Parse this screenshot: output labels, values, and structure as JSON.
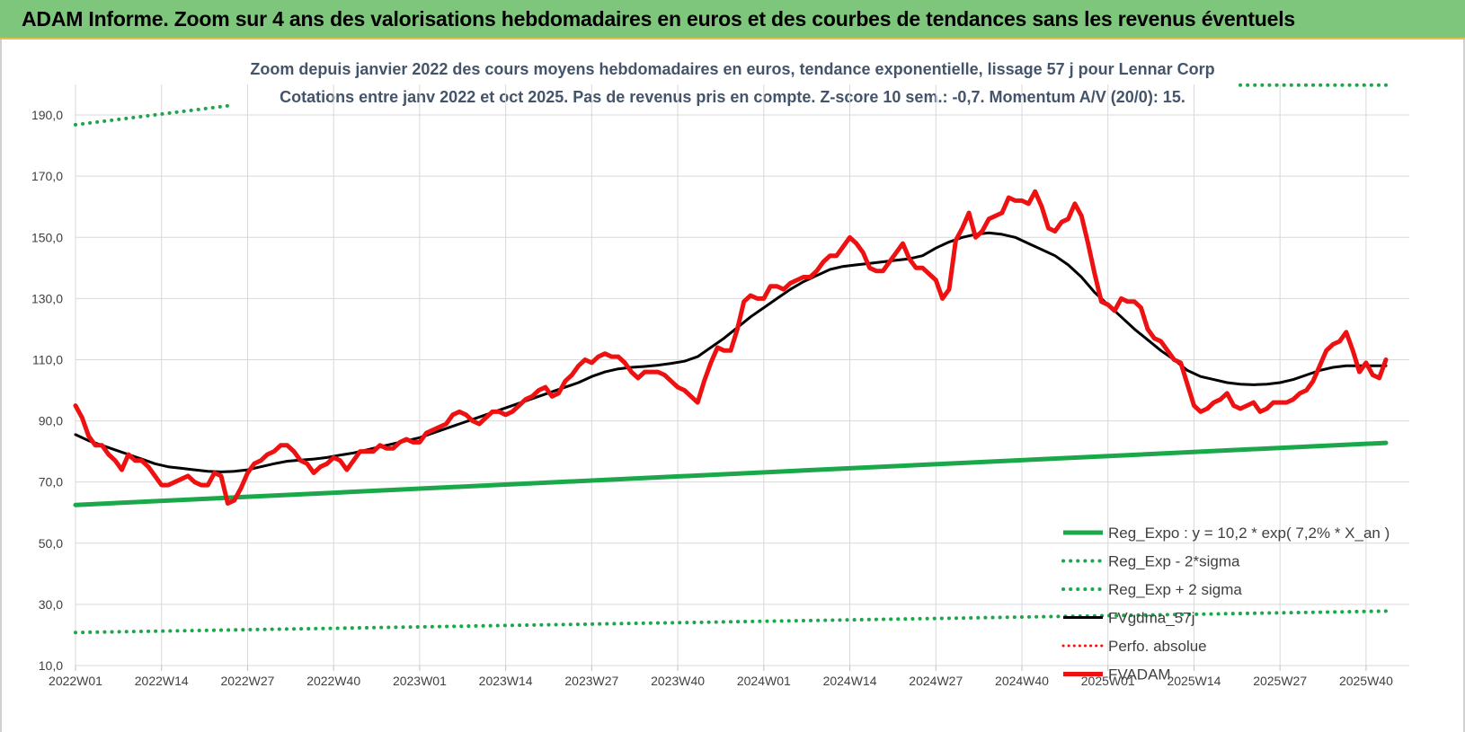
{
  "banner": {
    "title": "ADAM Informe. Zoom sur 4 ans des valorisations hebdomadaires en euros et des courbes de tendances sans les revenus éventuels"
  },
  "colors": {
    "banner_bg": "#7dc67b",
    "grid": "#d9d9d9",
    "reg_expo": "#1aa84a",
    "fvgdma": "#000000",
    "fvadam": "#ee1111",
    "perfo": "#ee1111"
  },
  "chart_data": {
    "type": "line",
    "title": "Zoom depuis janvier 2022 des cours moyens hebdomadaires en euros, tendance exponentielle, lissage 57 j pour Lennar Corp",
    "subtitle": "Cotations entre janv 2022 et oct 2025. Pas de revenus pris en compte. Z-score 10 sem.: -0,7. Momentum A/V (20/0): 15.",
    "xlabel": "",
    "ylabel": "",
    "ylim": [
      10,
      200
    ],
    "y_ticks": [
      10,
      30,
      50,
      70,
      90,
      110,
      130,
      150,
      170,
      190
    ],
    "y_tick_labels": [
      "10,0",
      "30,0",
      "50,0",
      "70,0",
      "90,0",
      "110,0",
      "130,0",
      "150,0",
      "170,0",
      "190,0"
    ],
    "x_ticks": [
      0,
      13,
      26,
      39,
      52,
      65,
      78,
      91,
      104,
      117,
      130,
      143,
      156,
      169,
      182,
      195
    ],
    "x_tick_labels": [
      "2022W01",
      "2022W14",
      "2022W27",
      "2022W40",
      "2023W01",
      "2023W14",
      "2023W27",
      "2023W40",
      "2024W01",
      "2024W14",
      "2024W27",
      "2024W40",
      "2025W01",
      "2025W14",
      "2025W27",
      "2025W40"
    ],
    "x_max": 198,
    "grid": true,
    "legend_position": "bottom-right",
    "series": [
      {
        "name": "Reg_Expo : y = 10,2 * exp( 7,2% * X_an )",
        "style": "solid-thick",
        "points": [
          [
            0,
            62.5
          ],
          [
            198,
            82.8
          ]
        ]
      },
      {
        "name": "Reg_Exp - 2*sigma",
        "style": "dotted",
        "points": [
          [
            0,
            20.8
          ],
          [
            198,
            27.8
          ]
        ]
      },
      {
        "name": "Reg_Exp + 2 sigma",
        "style": "dotted",
        "segments": [
          [
            [
              0,
              186.8
            ],
            [
              23,
              193.0
            ]
          ],
          [
            [
              176,
              199.8
            ],
            [
              198,
              199.8
            ]
          ]
        ]
      },
      {
        "name": "FVgdma_57j",
        "style": "solid",
        "points": [
          [
            0,
            85.5
          ],
          [
            2,
            83.5
          ],
          [
            4,
            82
          ],
          [
            6,
            80.5
          ],
          [
            8,
            79
          ],
          [
            10,
            77.5
          ],
          [
            12,
            76
          ],
          [
            14,
            75
          ],
          [
            16,
            74.5
          ],
          [
            18,
            74
          ],
          [
            20,
            73.5
          ],
          [
            22,
            73.3
          ],
          [
            24,
            73.5
          ],
          [
            26,
            74
          ],
          [
            28,
            75
          ],
          [
            30,
            76
          ],
          [
            32,
            76.8
          ],
          [
            34,
            77.2
          ],
          [
            36,
            77.5
          ],
          [
            38,
            78
          ],
          [
            40,
            78.8
          ],
          [
            42,
            79.5
          ],
          [
            44,
            80.5
          ],
          [
            46,
            81.5
          ],
          [
            48,
            82.5
          ],
          [
            50,
            83.5
          ],
          [
            52,
            84.5
          ],
          [
            54,
            86
          ],
          [
            56,
            87.5
          ],
          [
            58,
            89
          ],
          [
            60,
            90.5
          ],
          [
            62,
            92
          ],
          [
            64,
            93.5
          ],
          [
            66,
            95
          ],
          [
            68,
            96.5
          ],
          [
            70,
            98
          ],
          [
            72,
            99.5
          ],
          [
            74,
            101
          ],
          [
            76,
            102.5
          ],
          [
            78,
            104.5
          ],
          [
            80,
            106
          ],
          [
            82,
            107
          ],
          [
            84,
            107.5
          ],
          [
            86,
            107.8
          ],
          [
            88,
            108.2
          ],
          [
            90,
            108.8
          ],
          [
            92,
            109.5
          ],
          [
            94,
            111
          ],
          [
            96,
            114
          ],
          [
            98,
            117
          ],
          [
            100,
            120.5
          ],
          [
            102,
            124
          ],
          [
            104,
            127
          ],
          [
            106,
            130
          ],
          [
            108,
            133
          ],
          [
            110,
            135.5
          ],
          [
            112,
            137.5
          ],
          [
            114,
            139.5
          ],
          [
            116,
            140.5
          ],
          [
            118,
            141
          ],
          [
            120,
            141.5
          ],
          [
            122,
            142
          ],
          [
            124,
            142.5
          ],
          [
            126,
            143
          ],
          [
            128,
            144
          ],
          [
            130,
            146.5
          ],
          [
            132,
            148.5
          ],
          [
            134,
            150
          ],
          [
            136,
            151
          ],
          [
            138,
            151.5
          ],
          [
            140,
            151
          ],
          [
            142,
            150
          ],
          [
            144,
            148
          ],
          [
            146,
            146
          ],
          [
            148,
            144
          ],
          [
            150,
            141
          ],
          [
            152,
            137
          ],
          [
            154,
            132
          ],
          [
            156,
            128
          ],
          [
            158,
            124
          ],
          [
            160,
            120
          ],
          [
            162,
            116.5
          ],
          [
            164,
            113
          ],
          [
            166,
            110
          ],
          [
            168,
            106.5
          ],
          [
            170,
            104.5
          ],
          [
            172,
            103.5
          ],
          [
            174,
            102.5
          ],
          [
            176,
            102
          ],
          [
            178,
            101.8
          ],
          [
            180,
            102
          ],
          [
            182,
            102.5
          ],
          [
            184,
            103.5
          ],
          [
            186,
            105
          ],
          [
            188,
            106.5
          ],
          [
            190,
            107.5
          ],
          [
            192,
            108
          ],
          [
            194,
            108
          ],
          [
            196,
            108
          ],
          [
            198,
            108
          ]
        ]
      },
      {
        "name": "Perfo. absolue",
        "style": "dotted",
        "points": []
      },
      {
        "name": "FVADAM",
        "style": "solid-thick",
        "points": [
          [
            0,
            95
          ],
          [
            1,
            91
          ],
          [
            2,
            85
          ],
          [
            3,
            82
          ],
          [
            4,
            82
          ],
          [
            5,
            79
          ],
          [
            6,
            77
          ],
          [
            7,
            74
          ],
          [
            8,
            79
          ],
          [
            9,
            77
          ],
          [
            10,
            77
          ],
          [
            11,
            75
          ],
          [
            12,
            72
          ],
          [
            13,
            69
          ],
          [
            14,
            69
          ],
          [
            15,
            70
          ],
          [
            16,
            71
          ],
          [
            17,
            72
          ],
          [
            18,
            70
          ],
          [
            19,
            69
          ],
          [
            20,
            69
          ],
          [
            21,
            73
          ],
          [
            22,
            72
          ],
          [
            23,
            63
          ],
          [
            24,
            64
          ],
          [
            25,
            68
          ],
          [
            26,
            73
          ],
          [
            27,
            76
          ],
          [
            28,
            77
          ],
          [
            29,
            79
          ],
          [
            30,
            80
          ],
          [
            31,
            82
          ],
          [
            32,
            82
          ],
          [
            33,
            80
          ],
          [
            34,
            77
          ],
          [
            35,
            76
          ],
          [
            36,
            73
          ],
          [
            37,
            75
          ],
          [
            38,
            76
          ],
          [
            39,
            78
          ],
          [
            40,
            77
          ],
          [
            41,
            74
          ],
          [
            42,
            77
          ],
          [
            43,
            80
          ],
          [
            44,
            80
          ],
          [
            45,
            80
          ],
          [
            46,
            82
          ],
          [
            47,
            81
          ],
          [
            48,
            81
          ],
          [
            49,
            83
          ],
          [
            50,
            84
          ],
          [
            51,
            83
          ],
          [
            52,
            83
          ],
          [
            53,
            86
          ],
          [
            54,
            87
          ],
          [
            55,
            88
          ],
          [
            56,
            89
          ],
          [
            57,
            92
          ],
          [
            58,
            93
          ],
          [
            59,
            92
          ],
          [
            60,
            90
          ],
          [
            61,
            89
          ],
          [
            62,
            91
          ],
          [
            63,
            93
          ],
          [
            64,
            93
          ],
          [
            65,
            92
          ],
          [
            66,
            93
          ],
          [
            67,
            95
          ],
          [
            68,
            97
          ],
          [
            69,
            98
          ],
          [
            70,
            100
          ],
          [
            71,
            101
          ],
          [
            72,
            98
          ],
          [
            73,
            99
          ],
          [
            74,
            103
          ],
          [
            75,
            105
          ],
          [
            76,
            108
          ],
          [
            77,
            110
          ],
          [
            78,
            109
          ],
          [
            79,
            111
          ],
          [
            80,
            112
          ],
          [
            81,
            111
          ],
          [
            82,
            111
          ],
          [
            83,
            109
          ],
          [
            84,
            106
          ],
          [
            85,
            104
          ],
          [
            86,
            106
          ],
          [
            87,
            106
          ],
          [
            88,
            106
          ],
          [
            89,
            105
          ],
          [
            90,
            103
          ],
          [
            91,
            101
          ],
          [
            92,
            100
          ],
          [
            93,
            98
          ],
          [
            94,
            96
          ],
          [
            95,
            103
          ],
          [
            96,
            109
          ],
          [
            97,
            114
          ],
          [
            98,
            113
          ],
          [
            99,
            113
          ],
          [
            100,
            120
          ],
          [
            101,
            129
          ],
          [
            102,
            131
          ],
          [
            103,
            130
          ],
          [
            104,
            130
          ],
          [
            105,
            134
          ],
          [
            106,
            134
          ],
          [
            107,
            133
          ],
          [
            108,
            135
          ],
          [
            109,
            136
          ],
          [
            110,
            137
          ],
          [
            111,
            137
          ],
          [
            112,
            139
          ],
          [
            113,
            142
          ],
          [
            114,
            144
          ],
          [
            115,
            144
          ],
          [
            116,
            147
          ],
          [
            117,
            150
          ],
          [
            118,
            148
          ],
          [
            119,
            145
          ],
          [
            120,
            140
          ],
          [
            121,
            139
          ],
          [
            122,
            139
          ],
          [
            123,
            142
          ],
          [
            124,
            145
          ],
          [
            125,
            148
          ],
          [
            126,
            143
          ],
          [
            127,
            140
          ],
          [
            128,
            140
          ],
          [
            129,
            138
          ],
          [
            130,
            136
          ],
          [
            131,
            130
          ],
          [
            132,
            133
          ],
          [
            133,
            149
          ],
          [
            134,
            153
          ],
          [
            135,
            158
          ],
          [
            136,
            150
          ],
          [
            137,
            152
          ],
          [
            138,
            156
          ],
          [
            139,
            157
          ],
          [
            140,
            158
          ],
          [
            141,
            163
          ],
          [
            142,
            162
          ],
          [
            143,
            162
          ],
          [
            144,
            161
          ],
          [
            145,
            165
          ],
          [
            146,
            160
          ],
          [
            147,
            153
          ],
          [
            148,
            152
          ],
          [
            149,
            155
          ],
          [
            150,
            156
          ],
          [
            151,
            161
          ],
          [
            152,
            157
          ],
          [
            153,
            148
          ],
          [
            154,
            138
          ],
          [
            155,
            129
          ],
          [
            156,
            128
          ],
          [
            157,
            126
          ],
          [
            158,
            130
          ],
          [
            159,
            129
          ],
          [
            160,
            129
          ],
          [
            161,
            127
          ],
          [
            162,
            120
          ],
          [
            163,
            117
          ],
          [
            164,
            116
          ],
          [
            165,
            113
          ],
          [
            166,
            110
          ],
          [
            167,
            109
          ],
          [
            168,
            102
          ],
          [
            169,
            95
          ],
          [
            170,
            93
          ],
          [
            171,
            94
          ],
          [
            172,
            96
          ],
          [
            173,
            97
          ],
          [
            174,
            99
          ],
          [
            175,
            95
          ],
          [
            176,
            94
          ],
          [
            177,
            95
          ],
          [
            178,
            96
          ],
          [
            179,
            93
          ],
          [
            180,
            94
          ],
          [
            181,
            96
          ],
          [
            182,
            96
          ],
          [
            183,
            96
          ],
          [
            184,
            97
          ],
          [
            185,
            99
          ],
          [
            186,
            100
          ],
          [
            187,
            103
          ],
          [
            188,
            108
          ],
          [
            189,
            113
          ],
          [
            190,
            115
          ],
          [
            191,
            116
          ],
          [
            192,
            119
          ],
          [
            193,
            113
          ],
          [
            194,
            106
          ],
          [
            195,
            109
          ],
          [
            196,
            105
          ],
          [
            197,
            104
          ],
          [
            198,
            110
          ]
        ]
      }
    ]
  }
}
